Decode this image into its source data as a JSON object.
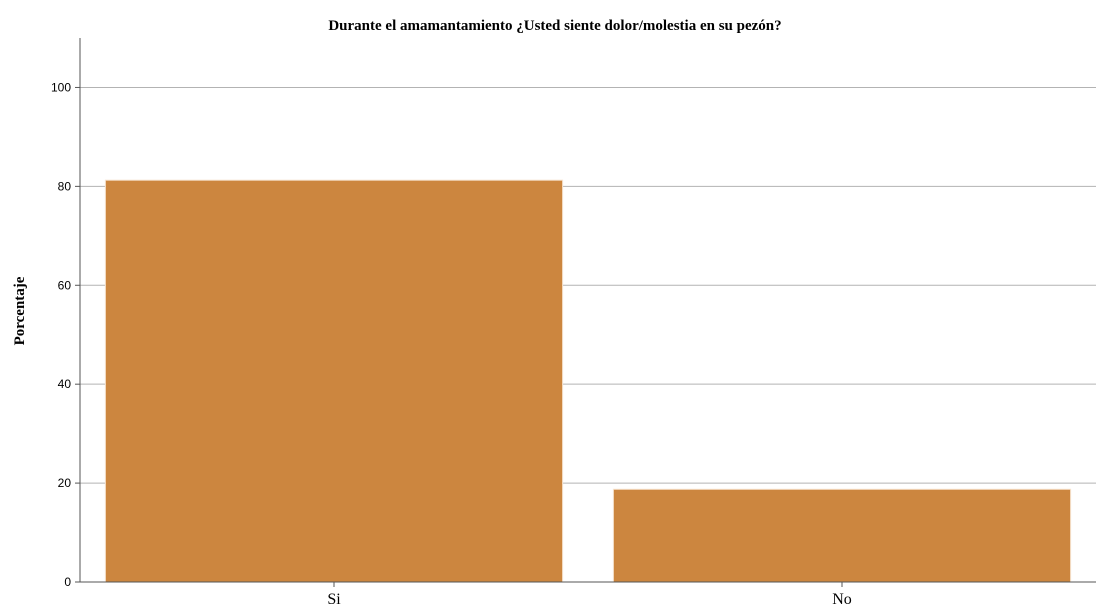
{
  "chart_data": {
    "type": "bar",
    "title": "Durante el amamantamiento ¿Usted siente dolor/molestia en su pezón?",
    "xlabel": "",
    "ylabel": "Porcentaje",
    "categories": [
      "Si",
      "No"
    ],
    "values": [
      81.25,
      18.75
    ],
    "ylim": [
      0,
      110
    ],
    "yticks": [
      0,
      20,
      40,
      60,
      80,
      100
    ],
    "grid": true,
    "bar_color": "#cc863f",
    "grid_color": "#b3b3b3"
  }
}
